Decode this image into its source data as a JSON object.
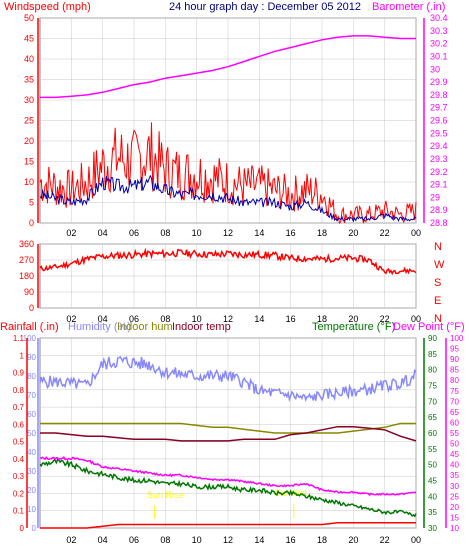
{
  "colors": {
    "windspeed": "#ff0000",
    "windspeed_avg": "#0000aa",
    "barometer": "#ff00ff",
    "direction": "#ff0000",
    "rainfall": "#ff0000",
    "humidity": "#8888ff",
    "indoor_hum": "#888800",
    "indoor_temp": "#880022",
    "temperature": "#007700",
    "dew_point": "#ff00ff",
    "title": "#000080",
    "grid": "#c8c8c8",
    "sunrise": "#ffff00"
  },
  "panel1": {
    "title": "24 hour graph day : December 05 2012",
    "left_label": "Windspeed (mph)",
    "right_label": "Barometer (.in)",
    "left_ticks": [
      "0",
      "5",
      "10",
      "15",
      "20",
      "25",
      "30",
      "35",
      "40",
      "45",
      "50"
    ],
    "right_ticks": [
      "28.8",
      "28.9",
      "29",
      "29.1",
      "29.2",
      "29.3",
      "29.4",
      "29.5",
      "29.6",
      "29.7",
      "29.8",
      "29.9",
      "30",
      "30.1",
      "30.2",
      "30.3",
      "30.4"
    ],
    "x_ticks": [
      "02",
      "04",
      "06",
      "08",
      "10",
      "12",
      "14",
      "16",
      "18",
      "20",
      "22",
      "00"
    ]
  },
  "panel2": {
    "left_ticks": [
      "0",
      "90",
      "180",
      "270",
      "360"
    ],
    "right_ticks": [
      "N",
      "W",
      "S",
      "E",
      "N"
    ],
    "x_ticks": [
      "02",
      "04",
      "06",
      "08",
      "10",
      "12",
      "14",
      "16",
      "18",
      "20",
      "22",
      "00"
    ]
  },
  "panel3": {
    "label_rainfall": "Rainfall (.in)",
    "label_humidity": "Humidity (%)",
    "label_indoor_hum": "Indoor hum",
    "label_indoor_temp": "Indoor temp",
    "label_temperature": "Temperature (°F)",
    "label_dew_point": "Dew Point (°F)",
    "rain_ticks": [
      "0",
      "0.1",
      "0.2",
      "0.3",
      "0.4",
      "0.5",
      "0.6",
      "0.7",
      "0.8",
      "0.9",
      "1",
      "1.1"
    ],
    "hum_ticks": [
      "0",
      "10",
      "20",
      "30",
      "40",
      "50",
      "60",
      "70",
      "80",
      "90",
      "100"
    ],
    "temp_ticks": [
      "30",
      "35",
      "40",
      "45",
      "50",
      "55",
      "60",
      "65",
      "70",
      "75",
      "80",
      "85",
      "90"
    ],
    "dew_ticks": [
      "10",
      "15",
      "20",
      "25",
      "30",
      "35",
      "40",
      "45",
      "50",
      "55",
      "60",
      "65",
      "70",
      "75",
      "80",
      "85",
      "90",
      "95",
      "100"
    ],
    "sunrise_label": "Sun Rise",
    "sunset_label": "Sun Set",
    "x_ticks": [
      "02",
      "04",
      "06",
      "08",
      "10",
      "12",
      "14",
      "16",
      "18",
      "20",
      "22",
      "00"
    ]
  },
  "chart_data": [
    {
      "type": "line",
      "title": "24 hour graph day : December 05 2012",
      "ylabel": "Windspeed (mph)",
      "y2label": "Barometer (.in)",
      "ylim": [
        0,
        50
      ],
      "y2lim": [
        28.8,
        30.4
      ],
      "x_hours": [
        0,
        1,
        2,
        3,
        4,
        5,
        6,
        7,
        8,
        9,
        10,
        11,
        12,
        13,
        14,
        15,
        16,
        17,
        18,
        19,
        20,
        21,
        22,
        23,
        24
      ],
      "series": [
        {
          "name": "Windspeed (mph)",
          "values": [
            10,
            9,
            8,
            10,
            14,
            16,
            15,
            17,
            13,
            12,
            12,
            11,
            10,
            9,
            9,
            8,
            7,
            8,
            7,
            2,
            2,
            2,
            3,
            2,
            3
          ]
        },
        {
          "name": "",
          "values": [
            7,
            6,
            5,
            6,
            10,
            9,
            9,
            10,
            8,
            7,
            7,
            7,
            6,
            5,
            5,
            5,
            4,
            5,
            3,
            1,
            1,
            1,
            2,
            1,
            1
          ]
        },
        {
          "name": "Barometer (.in)",
          "values": [
            29.78,
            29.78,
            29.79,
            29.8,
            29.82,
            29.85,
            29.88,
            29.9,
            29.93,
            29.95,
            29.97,
            29.99,
            30.02,
            30.06,
            30.1,
            30.14,
            30.17,
            30.2,
            30.23,
            30.25,
            30.26,
            30.26,
            30.25,
            30.24,
            30.24
          ]
        }
      ]
    },
    {
      "type": "line",
      "ylabel": "",
      "ylim": [
        0,
        360
      ],
      "x_hours": [
        0,
        1,
        2,
        3,
        4,
        5,
        6,
        7,
        8,
        9,
        10,
        11,
        12,
        13,
        14,
        15,
        16,
        17,
        18,
        19,
        20,
        21,
        22,
        23,
        24
      ],
      "series": [
        {
          "name": "",
          "values": [
            220,
            230,
            250,
            275,
            290,
            295,
            300,
            305,
            305,
            310,
            305,
            300,
            305,
            300,
            300,
            295,
            280,
            278,
            275,
            280,
            280,
            270,
            205,
            210,
            210
          ]
        }
      ]
    },
    {
      "type": "line",
      "ylim_rain": [
        0,
        1.1
      ],
      "ylim_humidity": [
        0,
        100
      ],
      "ylim_temperature": [
        30,
        90
      ],
      "ylim_dew_point": [
        10,
        100
      ],
      "x_hours": [
        0,
        1,
        2,
        3,
        4,
        5,
        6,
        7,
        8,
        9,
        10,
        11,
        12,
        13,
        14,
        15,
        16,
        17,
        18,
        19,
        20,
        21,
        22,
        23,
        24
      ],
      "series": [
        {
          "name": "Rainfall (.in)",
          "values": [
            0,
            0,
            0,
            0,
            0.01,
            0.02,
            0.02,
            0.02,
            0.02,
            0.02,
            0.02,
            0.02,
            0.02,
            0.02,
            0.02,
            0.02,
            0.02,
            0.02,
            0.02,
            0.03,
            0.03,
            0.03,
            0.03,
            0.03,
            0.03
          ]
        },
        {
          "name": "Humidity (%)",
          "values": [
            77,
            77,
            76,
            75,
            86,
            88,
            87,
            86,
            82,
            81,
            80,
            80,
            80,
            77,
            72,
            71,
            70,
            68,
            70,
            71,
            72,
            73,
            75,
            76,
            80
          ]
        },
        {
          "name": "Indoor hum",
          "values": [
            55,
            55,
            55,
            55,
            55,
            55,
            55,
            55,
            55,
            55,
            54,
            53,
            53,
            52,
            51,
            50,
            50,
            50,
            50,
            50,
            51,
            52,
            53,
            55,
            55
          ]
        },
        {
          "name": "Indoor temp",
          "values": [
            60,
            60,
            59.5,
            59,
            59,
            58.5,
            58,
            58,
            58,
            57.5,
            57.5,
            57.5,
            57.5,
            58,
            58,
            58,
            59.5,
            60,
            61,
            62,
            62,
            61.5,
            61,
            59,
            57.5
          ]
        },
        {
          "name": "Temperature (°F)",
          "values": [
            50,
            51,
            50,
            48,
            47,
            46,
            45,
            45,
            44,
            44,
            43,
            43,
            43,
            42,
            42,
            41,
            41,
            40,
            39,
            38,
            37,
            36,
            35,
            35,
            34
          ]
        },
        {
          "name": "Dew Point (°F)",
          "values": [
            43,
            43,
            43,
            42,
            39,
            38,
            37,
            36,
            35,
            35,
            34,
            33,
            33,
            32,
            31,
            30,
            30,
            31,
            28,
            27,
            27,
            26,
            26,
            26,
            27
          ]
        }
      ]
    }
  ]
}
